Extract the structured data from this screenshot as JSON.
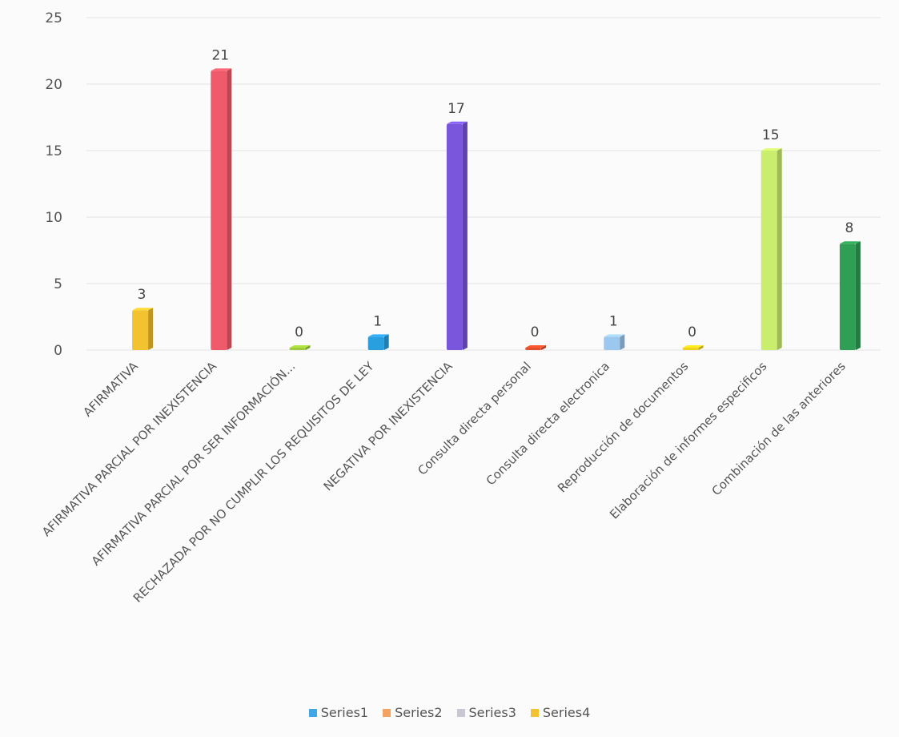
{
  "chart_data": {
    "type": "bar",
    "title": "",
    "xlabel": "",
    "ylabel": "",
    "ylim": [
      0,
      25
    ],
    "yticks": [
      0,
      5,
      10,
      15,
      20,
      25
    ],
    "grid": true,
    "legend_position": "bottom",
    "categories": [
      "AFIRMATIVA",
      "AFIRMATIVA PARCIAL POR INEXISTENCIA",
      "AFIRMATIVA PARCIAL POR SER INFORMACIÓN...",
      "RECHAZADA POR NO CUMPLIR LOS REQUISITOS DE LEY",
      "NEGATIVA POR INEXISTENCIA",
      "Consulta directa personal",
      "Consulta directa electronica",
      "Reproducción de documentos",
      "Elaboración de informes especificos",
      "Combinación de las anteriores"
    ],
    "values": [
      3,
      21,
      0,
      1,
      17,
      0,
      1,
      0,
      15,
      8
    ],
    "bar_colors": [
      "#f2c230",
      "#ef5b6a",
      "#9ccc3a",
      "#2a9fe0",
      "#7a56dd",
      "#e2502c",
      "#9cc7ee",
      "#f0d21c",
      "#c9ee6e",
      "#2f9f55"
    ],
    "legend": [
      {
        "name": "Series1",
        "color": "#3fa7e6"
      },
      {
        "name": "Series2",
        "color": "#f4a261"
      },
      {
        "name": "Series3",
        "color": "#c8c8d2"
      },
      {
        "name": "Series4",
        "color": "#f2c230"
      }
    ]
  }
}
